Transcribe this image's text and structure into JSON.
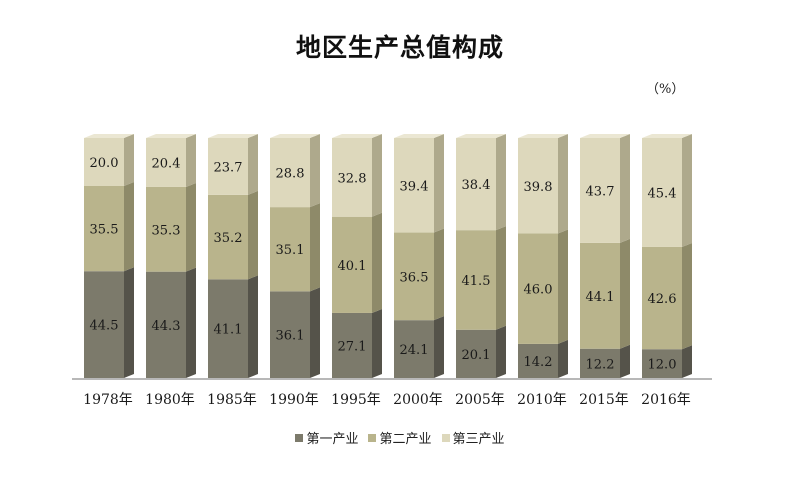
{
  "chart_data": {
    "type": "bar",
    "stacked": true,
    "title": "地区生产总值构成",
    "unit": "（%）",
    "categories": [
      "1978年",
      "1980年",
      "1985年",
      "1990年",
      "1995年",
      "2000年",
      "2005年",
      "2010年",
      "2015年",
      "2016年"
    ],
    "series": [
      {
        "name": "第一产业",
        "values": [
          44.5,
          44.3,
          41.1,
          36.1,
          27.1,
          24.1,
          20.1,
          14.2,
          12.2,
          12.0
        ],
        "color": "#7c7a6b"
      },
      {
        "name": "第二产业",
        "values": [
          35.5,
          35.3,
          35.2,
          35.1,
          40.1,
          36.5,
          41.5,
          46.0,
          44.1,
          42.6
        ],
        "color": "#b9b48c"
      },
      {
        "name": "第三产业",
        "values": [
          20.0,
          20.4,
          23.7,
          28.8,
          32.8,
          39.4,
          38.4,
          39.8,
          43.7,
          45.4
        ],
        "color": "#ddd8bc"
      }
    ],
    "ylim": [
      0,
      100
    ],
    "legend_position": "bottom",
    "grid": false
  }
}
